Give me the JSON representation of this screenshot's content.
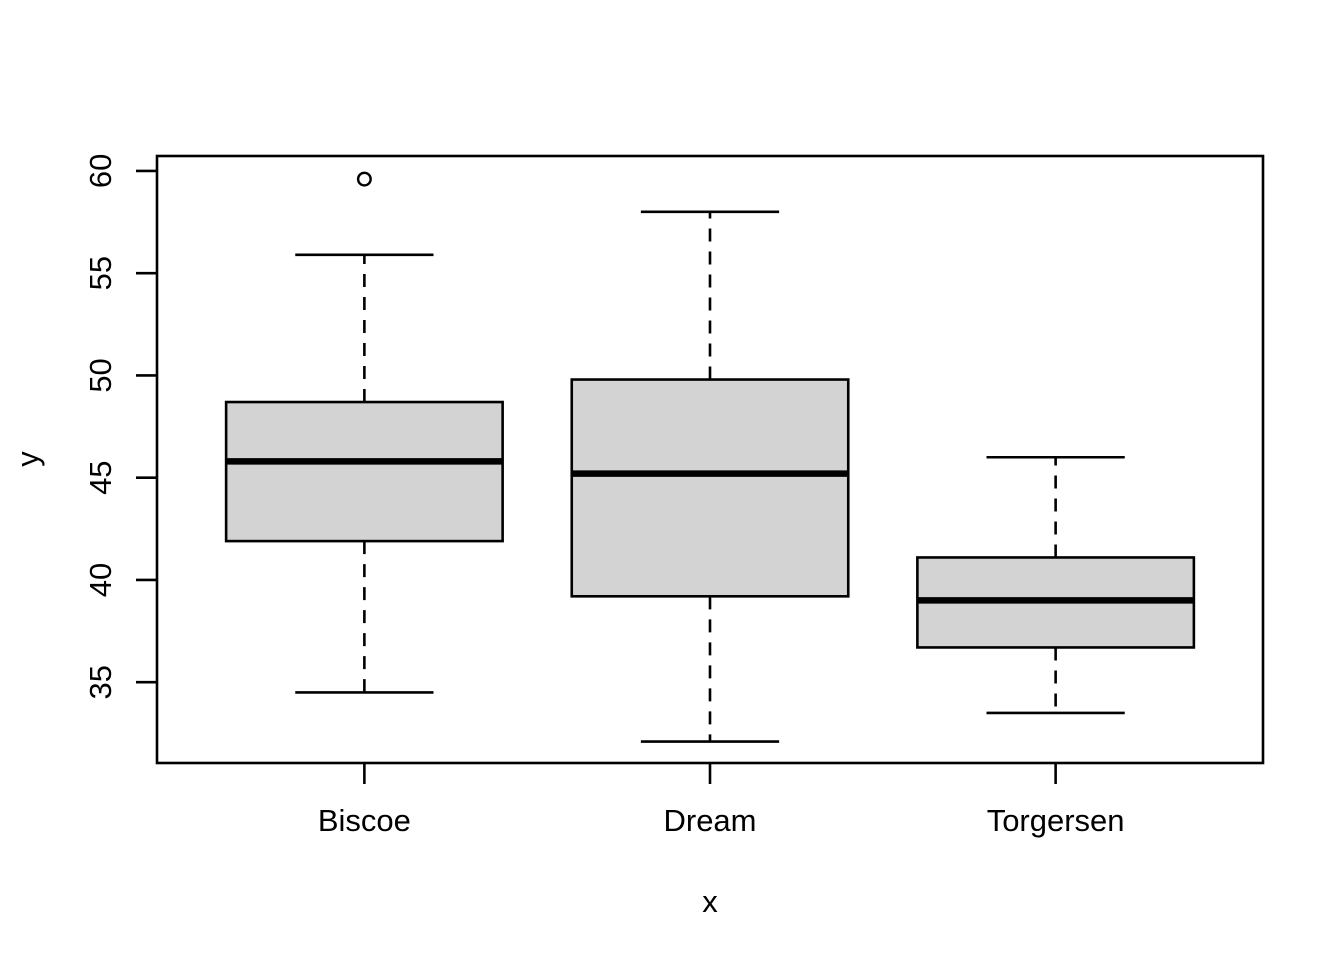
{
  "figure": {
    "background": "#FFFFFF"
  },
  "chart_data": {
    "type": "boxplot",
    "title": "",
    "xlabel": "x",
    "ylabel": "y",
    "categories": [
      "Biscoe",
      "Dream",
      "Torgersen"
    ],
    "series": [
      {
        "name": "Biscoe",
        "x": 1,
        "whisker_low": 34.5,
        "q1": 41.9,
        "median": 45.8,
        "q3": 48.7,
        "whisker_high": 55.9,
        "outliers": [
          59.6
        ]
      },
      {
        "name": "Dream",
        "x": 2,
        "whisker_low": 32.1,
        "q1": 39.2,
        "median": 45.2,
        "q3": 49.8,
        "whisker_high": 58.0,
        "outliers": []
      },
      {
        "name": "Torgersen",
        "x": 3,
        "whisker_low": 33.5,
        "q1": 36.7,
        "median": 39.0,
        "q3": 41.1,
        "whisker_high": 46.0,
        "outliers": []
      }
    ],
    "yticks": [
      35,
      40,
      45,
      50,
      55,
      60
    ],
    "ylim": [
      31.05,
      60.73
    ],
    "xlim": [
      0.4,
      3.6
    ],
    "box_width": 0.8,
    "staple_width": 0.4,
    "box_fill": "#D3D3D3",
    "line_color": "#000000",
    "text_color": "#000000",
    "grid": false,
    "legend": false
  }
}
